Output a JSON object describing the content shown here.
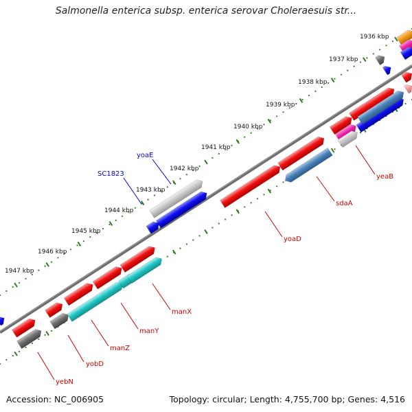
{
  "title": "Salmonella enterica subsp. enterica serovar Choleraesuis str...",
  "footer": {
    "accession": "Accession: NC_006905",
    "topology": "Topology: circular; Length: 4,755,700 bp; Genes: 4,516"
  },
  "ticks": [
    {
      "label": "1936 kbp"
    },
    {
      "label": "1937 kbp"
    },
    {
      "label": "1938 kbp"
    },
    {
      "label": "1939 kbp"
    },
    {
      "label": "1940 kbp"
    },
    {
      "label": "1941 kbp"
    },
    {
      "label": "1942 kbp"
    },
    {
      "label": "1943 kbp"
    },
    {
      "label": "1944 kbp"
    },
    {
      "label": "1945 kbp"
    },
    {
      "label": "1946 kbp"
    },
    {
      "label": "1947 kbp"
    }
  ],
  "gene_labels": [
    {
      "name": "yoaE",
      "color": "#0000cc"
    },
    {
      "name": "SC1823",
      "color": "#0000cc"
    },
    {
      "name": "yeaB",
      "color": "#cc0000"
    },
    {
      "name": "sdaA",
      "color": "#cc0000"
    },
    {
      "name": "yoaD",
      "color": "#cc0000"
    },
    {
      "name": "manX",
      "color": "#cc0000"
    },
    {
      "name": "manY",
      "color": "#cc0000"
    },
    {
      "name": "manZ",
      "color": "#cc0000"
    },
    {
      "name": "yobD",
      "color": "#cc0000"
    },
    {
      "name": "yebN",
      "color": "#cc0000"
    }
  ],
  "colors": {
    "backbone": "#6e6e6e",
    "tick_dots": "#2e7d1e",
    "red_gene": "#ee1111",
    "blue_gene": "#1010ee",
    "cyan_gene": "#22c4c4",
    "gray_gene": "#707070",
    "lightgray_gene": "#c8c8c8",
    "steelblue_gene": "#4a82b8",
    "magenta_gene": "#ee22aa",
    "orange_gene": "#f29a1a"
  }
}
